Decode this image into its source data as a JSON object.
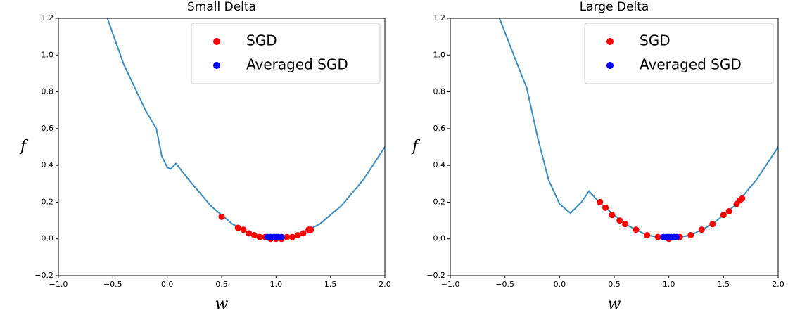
{
  "chart_data": [
    {
      "type": "line",
      "title": "Small Delta",
      "xlabel": "w",
      "ylabel": "f",
      "xlim": [
        -1,
        2
      ],
      "ylim": [
        -0.2,
        1.2
      ],
      "xticks": [
        {
          "value": -1,
          "label": "−1.0"
        },
        {
          "value": -0.5,
          "label": "−0.5"
        },
        {
          "value": 0,
          "label": "0.0"
        },
        0.5,
        {
          "value": 1,
          "label": "1.0"
        },
        1.5,
        {
          "value": 2,
          "label": "2.0"
        }
      ],
      "yticks": [
        {
          "value": -0.2,
          "label": "−0.2"
        },
        {
          "value": 0,
          "label": "0.0"
        },
        0.2,
        0.4,
        0.6,
        0.8,
        {
          "value": 1,
          "label": "1.0"
        },
        1.2
      ],
      "legend": "upper right",
      "series": [
        {
          "type": "line",
          "color": "#3a8cc1",
          "x": [
            -0.55,
            -0.4,
            -0.2,
            -0.1,
            -0.05,
            0.0,
            0.03,
            0.08,
            0.2,
            0.4,
            0.6,
            0.8,
            1.0,
            1.2,
            1.4,
            1.6,
            1.8,
            2.0
          ],
          "values": [
            1.2,
            0.95,
            0.7,
            0.6,
            0.45,
            0.39,
            0.38,
            0.41,
            0.32,
            0.18,
            0.08,
            0.02,
            0.0,
            0.02,
            0.08,
            0.18,
            0.32,
            0.5
          ]
        },
        {
          "type": "scatter",
          "name": "SGD",
          "color": "#ff0000",
          "x": [
            0.5,
            0.65,
            0.7,
            0.75,
            0.8,
            0.85,
            0.9,
            0.95,
            1.0,
            1.05,
            1.1,
            1.15,
            1.2,
            1.25,
            1.3,
            1.32
          ],
          "values": [
            0.12,
            0.06,
            0.05,
            0.03,
            0.02,
            0.01,
            0.01,
            0.0,
            0.0,
            0.0,
            0.01,
            0.01,
            0.02,
            0.03,
            0.05,
            0.05
          ]
        },
        {
          "type": "scatter",
          "name": "Averaged SGD",
          "color": "#0000ff",
          "x": [
            0.92,
            0.95,
            0.98,
            1.0,
            1.02,
            1.05
          ],
          "values": [
            0.01,
            0.01,
            0.01,
            0.01,
            0.01,
            0.01
          ]
        }
      ]
    },
    {
      "type": "line",
      "title": "Large Delta",
      "xlabel": "w",
      "ylabel": "f",
      "xlim": [
        -1,
        2
      ],
      "ylim": [
        -0.2,
        1.2
      ],
      "xticks": [
        {
          "value": -1,
          "label": "−1.0"
        },
        {
          "value": -0.5,
          "label": "−0.5"
        },
        {
          "value": 0,
          "label": "0.0"
        },
        0.5,
        {
          "value": 1,
          "label": "1.0"
        },
        1.5,
        {
          "value": 2,
          "label": "2.0"
        }
      ],
      "yticks": [
        {
          "value": -0.2,
          "label": "−0.2"
        },
        {
          "value": 0,
          "label": "0.0"
        },
        0.2,
        0.4,
        0.6,
        0.8,
        {
          "value": 1,
          "label": "1.0"
        },
        1.2
      ],
      "legend": "upper right",
      "series": [
        {
          "type": "line",
          "color": "#3a8cc1",
          "x": [
            -0.55,
            -0.4,
            -0.3,
            -0.2,
            -0.1,
            0.0,
            0.1,
            0.2,
            0.27,
            0.33,
            0.4,
            0.6,
            0.8,
            1.0,
            1.2,
            1.4,
            1.6,
            1.8,
            2.0
          ],
          "values": [
            1.2,
            0.97,
            0.82,
            0.55,
            0.32,
            0.19,
            0.14,
            0.2,
            0.26,
            0.22,
            0.18,
            0.08,
            0.02,
            0.0,
            0.02,
            0.08,
            0.18,
            0.32,
            0.5
          ]
        },
        {
          "type": "scatter",
          "name": "SGD",
          "color": "#ff0000",
          "x": [
            0.37,
            0.42,
            0.48,
            0.55,
            0.6,
            0.7,
            0.8,
            0.9,
            1.0,
            1.1,
            1.2,
            1.3,
            1.4,
            1.5,
            1.55,
            1.62,
            1.65,
            1.67
          ],
          "values": [
            0.2,
            0.17,
            0.13,
            0.1,
            0.08,
            0.05,
            0.02,
            0.01,
            0.0,
            0.01,
            0.02,
            0.05,
            0.08,
            0.13,
            0.15,
            0.19,
            0.21,
            0.22
          ]
        },
        {
          "type": "scatter",
          "name": "Averaged SGD",
          "color": "#0000ff",
          "x": [
            0.95,
            0.98,
            1.0,
            1.02,
            1.05,
            1.07
          ],
          "values": [
            0.01,
            0.01,
            0.01,
            0.01,
            0.01,
            0.01
          ]
        }
      ]
    }
  ]
}
